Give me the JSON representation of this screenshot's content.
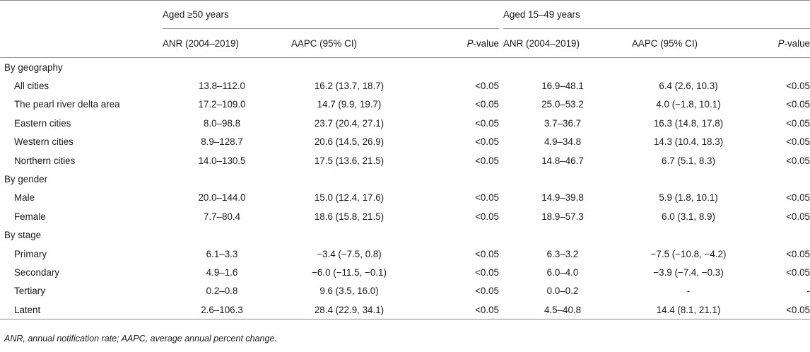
{
  "header": {
    "group1": "Aged ≥50 years",
    "group2": "Aged 15–49 years",
    "col_anr": "ANR (2004–2019)",
    "col_aapc": "AAPC (95% CI)",
    "col_p_italic": "P",
    "col_p_rest": "-value"
  },
  "rows": [
    {
      "type": "section",
      "label": "By geography"
    },
    {
      "type": "item",
      "label": "All cities",
      "anr1": "13.8–112.0",
      "aapc1": "16.2 (13.7, 18.7)",
      "p1": "<0.05",
      "anr2": "16.9–48.1",
      "aapc2": "6.4 (2.6, 10.3)",
      "p2": "<0.05"
    },
    {
      "type": "item",
      "label": "The pearl river delta area",
      "anr1": "17.2–109.0",
      "aapc1": "14.7 (9.9, 19.7)",
      "p1": "<0.05",
      "anr2": "25.0–53.2",
      "aapc2": "4.0 (−1.8, 10.1)",
      "p2": "<0.05"
    },
    {
      "type": "item",
      "label": "Eastern cities",
      "anr1": "8.0–98.8",
      "aapc1": "23.7 (20.4, 27.1)",
      "p1": "<0.05",
      "anr2": "3.7–36.7",
      "aapc2": "16.3 (14.8, 17.8)",
      "p2": "<0.05"
    },
    {
      "type": "item",
      "label": "Western cities",
      "anr1": "8.9–128.7",
      "aapc1": "20.6 (14.5, 26.9)",
      "p1": "<0.05",
      "anr2": "4.9–34.8",
      "aapc2": "14.3 (10.4, 18.3)",
      "p2": "<0.05"
    },
    {
      "type": "item",
      "label": "Northern cities",
      "anr1": "14.0–130.5",
      "aapc1": "17.5 (13.6, 21.5)",
      "p1": "<0.05",
      "anr2": "14.8–46.7",
      "aapc2": "6.7 (5.1, 8.3)",
      "p2": "<0.05"
    },
    {
      "type": "section",
      "label": "By gender"
    },
    {
      "type": "item",
      "label": "Male",
      "anr1": "20.0–144.0",
      "aapc1": "15.0 (12.4, 17.6)",
      "p1": "<0.05",
      "anr2": "14.9–39.8",
      "aapc2": "5.9 (1.8, 10.1)",
      "p2": "<0.05"
    },
    {
      "type": "item",
      "label": "Female",
      "anr1": "7.7–80.4",
      "aapc1": "18.6 (15.8, 21.5)",
      "p1": "<0.05",
      "anr2": "18.9–57.3",
      "aapc2": "6.0 (3.1, 8.9)",
      "p2": "<0.05"
    },
    {
      "type": "section",
      "label": "By stage"
    },
    {
      "type": "item",
      "label": "Primary",
      "anr1": "6.1–3.3",
      "aapc1": "−3.4 (−7.5, 0.8)",
      "p1": "<0.05",
      "anr2": "6.3–3.2",
      "aapc2": "−7.5 (−10.8, −4.2)",
      "p2": "<0.05"
    },
    {
      "type": "item",
      "label": "Secondary",
      "anr1": "4.9–1.6",
      "aapc1": "−6.0 (−11.5, −0.1)",
      "p1": "<0.05",
      "anr2": "6.0–4.0",
      "aapc2": "−3.9 (−7.4, −0.3)",
      "p2": "<0.05"
    },
    {
      "type": "item",
      "label": "Tertiary",
      "anr1": "0.2–0.8",
      "aapc1": "9.6 (3.5, 16.0)",
      "p1": "<0.05",
      "anr2": "0.0–0.2",
      "aapc2": "-",
      "p2": "-"
    },
    {
      "type": "item",
      "label": "Latent",
      "anr1": "2.6–106.3",
      "aapc1": "28.4 (22.9, 34.1)",
      "p1": "<0.05",
      "anr2": "4.5–40.8",
      "aapc2": "14.4 (8.1, 21.1)",
      "p2": "<0.05"
    }
  ],
  "footnote": "ANR, annual notification rate; AAPC, average annual percent change."
}
